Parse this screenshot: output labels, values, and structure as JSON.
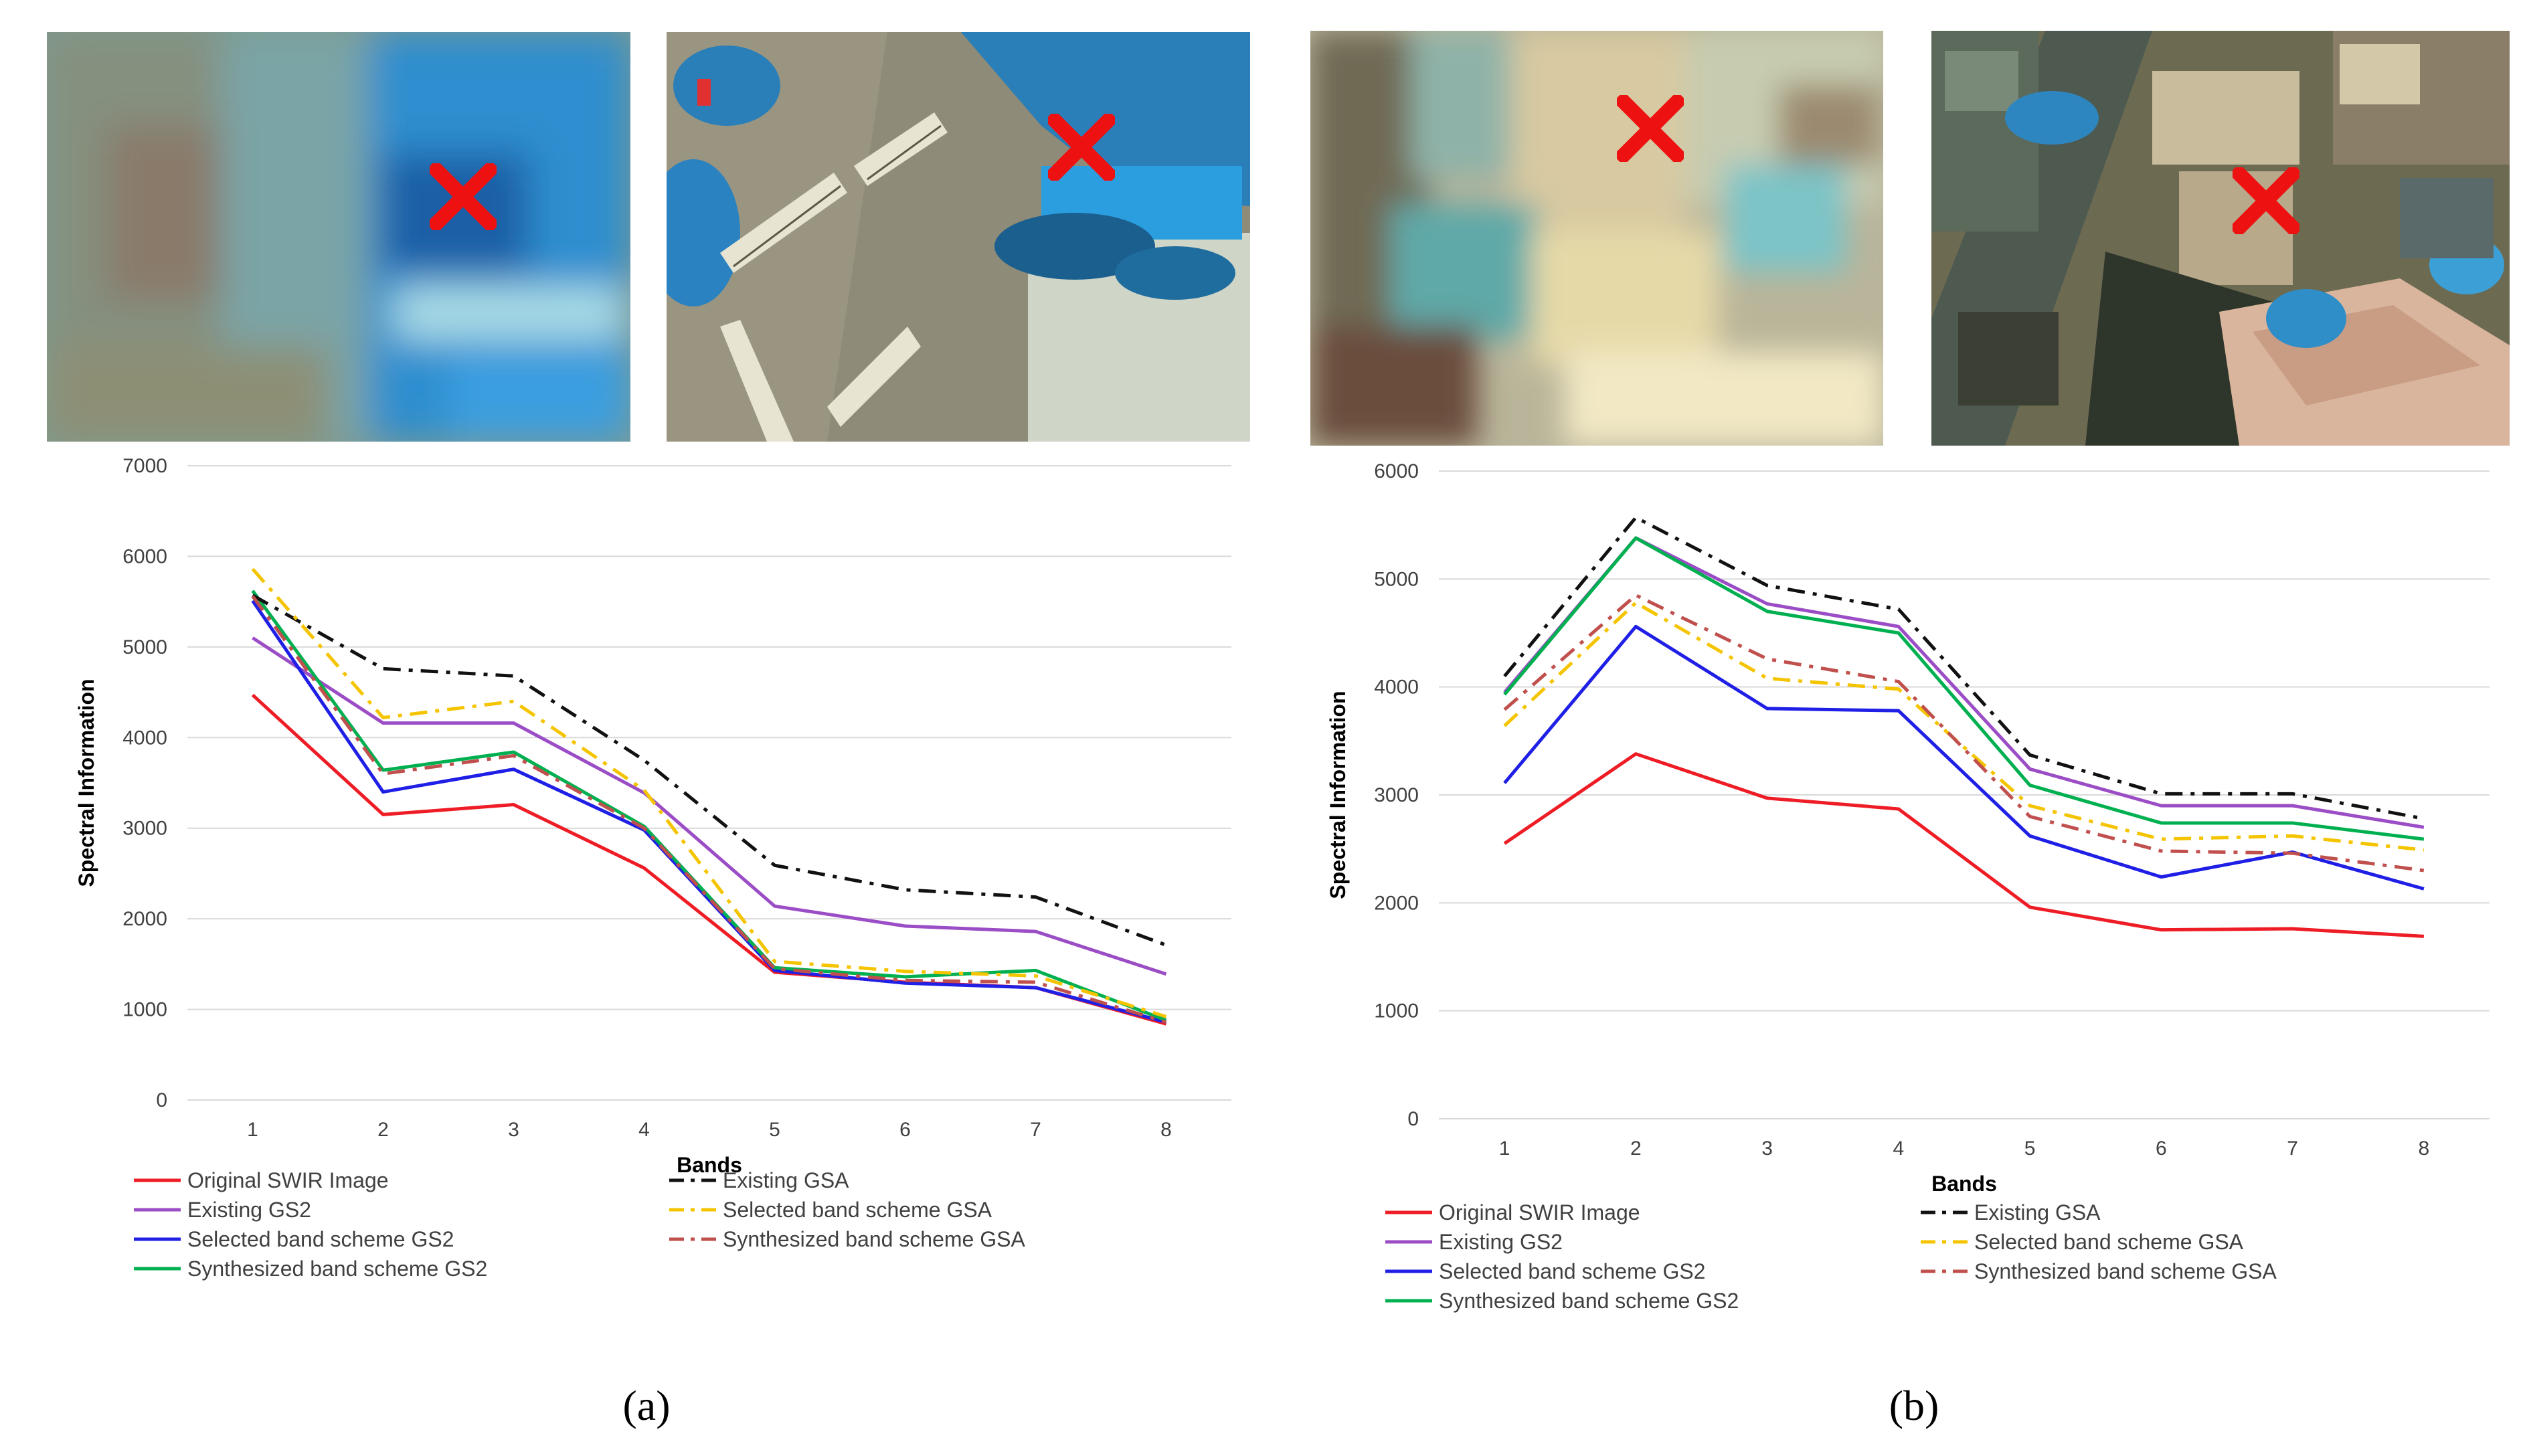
{
  "figure": {
    "panels": [
      {
        "caption": "(a)",
        "images": [
          {
            "name": "blurred-swir-thumbnail",
            "marker": "red-x-marker"
          },
          {
            "name": "sharpened-thumbnail-crosswalk",
            "marker": "red-x-marker"
          }
        ]
      },
      {
        "caption": "(b)",
        "images": [
          {
            "name": "blurred-swir-thumbnail",
            "marker": "red-x-marker"
          },
          {
            "name": "sharpened-thumbnail-buildings",
            "marker": "red-x-marker"
          }
        ]
      }
    ]
  },
  "chart_data": [
    {
      "type": "line",
      "title": "",
      "xlabel": "Bands",
      "ylabel": "Spectral Information",
      "categories": [
        "1",
        "2",
        "3",
        "4",
        "5",
        "6",
        "7",
        "8"
      ],
      "ylim": [
        0,
        7000
      ],
      "yticks": [
        0,
        1000,
        2000,
        3000,
        4000,
        5000,
        6000,
        7000
      ],
      "ytick_labels": [
        "0",
        "1000",
        "2000",
        "3000",
        "4000",
        "5000",
        "6000",
        "7000"
      ],
      "grid": true,
      "legend_position": "bottom",
      "series": [
        {
          "name": "Original SWIR Image",
          "color": "#ee1c25",
          "dash": "solid",
          "values": [
            4470,
            3150,
            3260,
            2560,
            1410,
            1300,
            1240,
            840
          ]
        },
        {
          "name": "Existing GS2",
          "color": "#9b4dc6",
          "dash": "solid",
          "values": [
            5100,
            4160,
            4160,
            3390,
            2140,
            1920,
            1860,
            1390
          ]
        },
        {
          "name": "Selected band scheme GS2",
          "color": "#1f1fe6",
          "dash": "solid",
          "values": [
            5510,
            3400,
            3650,
            2980,
            1430,
            1290,
            1240,
            860
          ]
        },
        {
          "name": "Synthesized band scheme GS2",
          "color": "#00b050",
          "dash": "solid",
          "values": [
            5620,
            3640,
            3840,
            3020,
            1460,
            1360,
            1430,
            880
          ]
        },
        {
          "name": "Existing GSA",
          "color": "#111111",
          "dash": "dashdot",
          "values": [
            5570,
            4760,
            4680,
            3750,
            2590,
            2320,
            2240,
            1710
          ]
        },
        {
          "name": "Selected band scheme GSA",
          "color": "#f5c400",
          "dash": "dashdot",
          "values": [
            5860,
            4220,
            4400,
            3420,
            1530,
            1420,
            1370,
            920
          ]
        },
        {
          "name": "Synthesized band scheme GSA",
          "color": "#c0504d",
          "dash": "dashdot",
          "values": [
            5560,
            3600,
            3800,
            3000,
            1450,
            1320,
            1300,
            860
          ]
        }
      ]
    },
    {
      "type": "line",
      "title": "",
      "xlabel": "Bands",
      "ylabel": "Spectral Information",
      "categories": [
        "1",
        "2",
        "3",
        "4",
        "5",
        "6",
        "7",
        "8"
      ],
      "ylim": [
        0,
        6000
      ],
      "yticks": [
        0,
        1000,
        2000,
        3000,
        4000,
        5000,
        6000
      ],
      "ytick_labels": [
        "0",
        "1000",
        "2000",
        "3000",
        "4000",
        "5000",
        "6000"
      ],
      "grid": true,
      "legend_position": "bottom",
      "series": [
        {
          "name": "Original SWIR Image",
          "color": "#ee1c25",
          "dash": "solid",
          "values": [
            2550,
            3380,
            2970,
            2870,
            1960,
            1750,
            1760,
            1690
          ]
        },
        {
          "name": "Existing GS2",
          "color": "#9b4dc6",
          "dash": "solid",
          "values": [
            3950,
            5380,
            4770,
            4560,
            3240,
            2900,
            2900,
            2700
          ]
        },
        {
          "name": "Selected band scheme GS2",
          "color": "#1f1fe6",
          "dash": "solid",
          "values": [
            3110,
            4560,
            3800,
            3780,
            2620,
            2240,
            2470,
            2130
          ]
        },
        {
          "name": "Synthesized band scheme GS2",
          "color": "#00b050",
          "dash": "solid",
          "values": [
            3930,
            5380,
            4700,
            4500,
            3090,
            2740,
            2740,
            2590
          ]
        },
        {
          "name": "Existing GSA",
          "color": "#111111",
          "dash": "dashdot",
          "values": [
            4100,
            5570,
            4940,
            4720,
            3370,
            3010,
            3010,
            2780
          ]
        },
        {
          "name": "Selected band scheme GSA",
          "color": "#f5c400",
          "dash": "dashdot",
          "values": [
            3640,
            4780,
            4080,
            3980,
            2900,
            2590,
            2620,
            2490
          ]
        },
        {
          "name": "Synthesized band scheme GSA",
          "color": "#c0504d",
          "dash": "dashdot",
          "values": [
            3790,
            4850,
            4260,
            4050,
            2800,
            2480,
            2460,
            2300
          ]
        }
      ]
    }
  ]
}
